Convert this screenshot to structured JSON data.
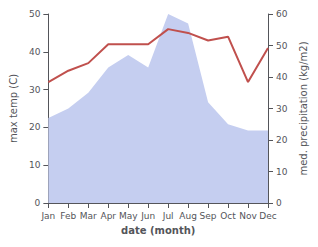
{
  "chart_data": {
    "type": "line",
    "xlabel": "date (month)",
    "ylabel": "max temp (C)",
    "y2label": "med. precipitation (kg/m2)",
    "categories": [
      "Jan",
      "Feb",
      "Mar",
      "Apr",
      "May",
      "Jun",
      "Jul",
      "Aug",
      "Sep",
      "Oct",
      "Nov",
      "Dec"
    ],
    "series": [
      {
        "type": "area",
        "axis": "y2",
        "color": "#c5cef0",
        "values": [
          27,
          30,
          35,
          43,
          47,
          43,
          60,
          57,
          32,
          25,
          23,
          23
        ]
      },
      {
        "type": "line",
        "color": "#c0504d",
        "values": [
          32,
          35,
          37,
          42,
          42,
          42,
          46,
          45,
          43,
          44,
          32,
          41
        ]
      }
    ],
    "ylim": [
      0,
      50
    ],
    "yticks": [
      0,
      10,
      20,
      30,
      40,
      50
    ],
    "y2lim": [
      0,
      60
    ],
    "y2ticks": [
      0,
      10,
      20,
      30,
      40,
      50,
      60
    ],
    "grid": false
  }
}
